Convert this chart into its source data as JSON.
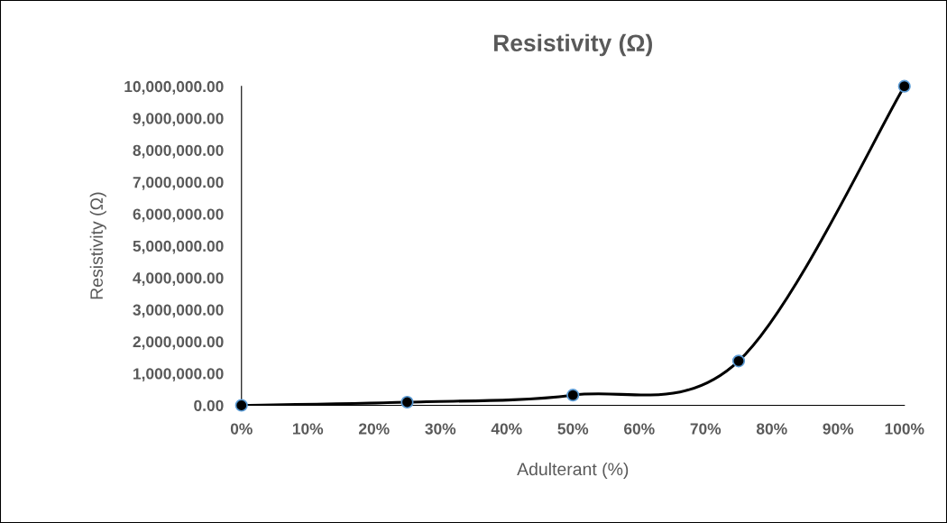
{
  "chart_data": {
    "type": "line",
    "title": "Resistivity (Ω)",
    "xlabel": "Adulterant (%)",
    "ylabel": "Resistivity (Ω)",
    "x": [
      0,
      25,
      50,
      75,
      100
    ],
    "series": [
      {
        "color": "#000000",
        "values": [
          0,
          100000,
          320000,
          1390000,
          10000000
        ]
      }
    ],
    "marker": "circle",
    "line_style": "solid",
    "grid": false,
    "legend": false,
    "xlim": [
      0,
      100
    ],
    "xticks": [
      {
        "value": 0,
        "label": "0%"
      },
      {
        "value": 10,
        "label": "10%"
      },
      {
        "value": 20,
        "label": "20%"
      },
      {
        "value": 30,
        "label": "30%"
      },
      {
        "value": 40,
        "label": "40%"
      },
      {
        "value": 50,
        "label": "50%"
      },
      {
        "value": 60,
        "label": "60%"
      },
      {
        "value": 70,
        "label": "70%"
      },
      {
        "value": 80,
        "label": "80%"
      },
      {
        "value": 90,
        "label": "90%"
      },
      {
        "value": 100,
        "label": "100%"
      }
    ],
    "ylim": [
      0,
      10000000
    ],
    "yticks": [
      {
        "value": 0,
        "label": "0.00"
      },
      {
        "value": 1000000,
        "label": "1,000,000.00"
      },
      {
        "value": 2000000,
        "label": "2,000,000.00"
      },
      {
        "value": 3000000,
        "label": "3,000,000.00"
      },
      {
        "value": 4000000,
        "label": "4,000,000.00"
      },
      {
        "value": 5000000,
        "label": "5,000,000.00"
      },
      {
        "value": 6000000,
        "label": "6,000,000.00"
      },
      {
        "value": 7000000,
        "label": "7,000,000.00"
      },
      {
        "value": 8000000,
        "label": "8,000,000.00"
      },
      {
        "value": 9000000,
        "label": "9,000,000.00"
      },
      {
        "value": 10000000,
        "label": "10,000,000.00"
      }
    ]
  }
}
